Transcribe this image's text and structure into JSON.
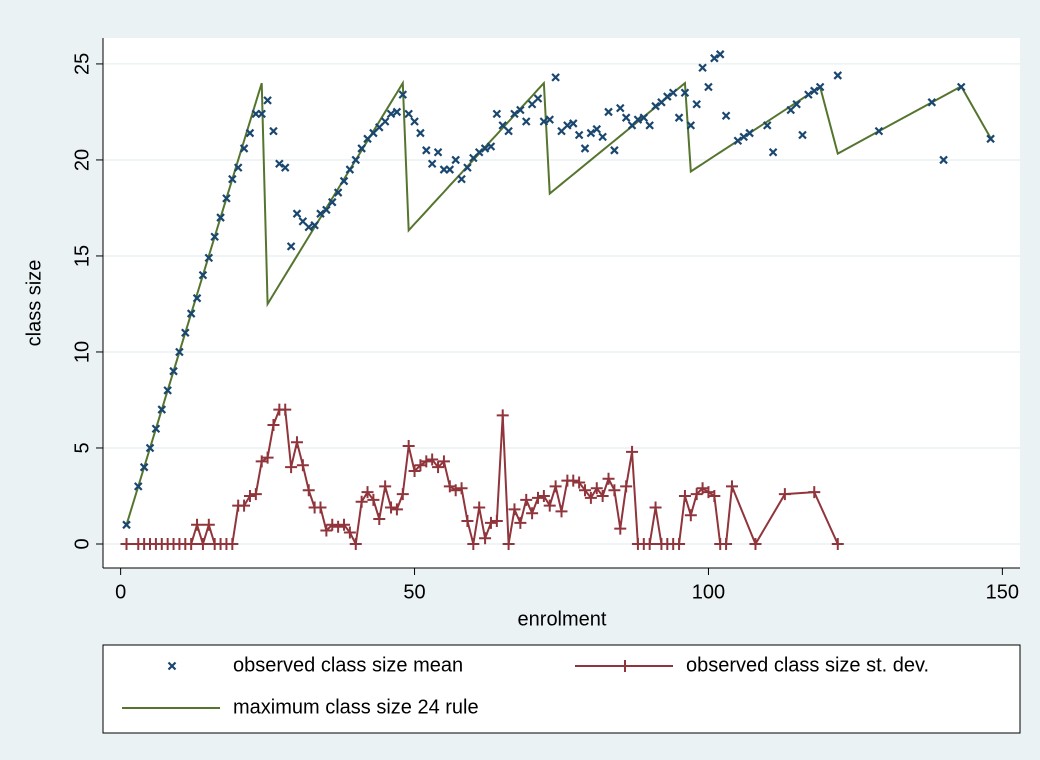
{
  "chart_data": {
    "type": "scatter-line",
    "xlabel": "enrolment",
    "ylabel": "class size",
    "xlim": [
      -3,
      153
    ],
    "ylim": [
      -1.25,
      26.35
    ],
    "xticks": [
      0,
      50,
      100,
      150
    ],
    "yticks": [
      0,
      5,
      10,
      15,
      20,
      25
    ],
    "grid": true,
    "legend": "bottom",
    "series": [
      {
        "name": "observed class size mean",
        "color": "#1a476f",
        "marker": "x",
        "line": false,
        "x": [
          1,
          3,
          4,
          5,
          6,
          7,
          8,
          9,
          10,
          11,
          12,
          13,
          14,
          15,
          16,
          17,
          18,
          19,
          20,
          21,
          22,
          23,
          24,
          25,
          26,
          27,
          28,
          29,
          30,
          31,
          32,
          33,
          34,
          35,
          36,
          37,
          38,
          39,
          40,
          41,
          42,
          43,
          44,
          45,
          46,
          47,
          48,
          49,
          50,
          51,
          52,
          53,
          54,
          55,
          56,
          57,
          58,
          59,
          60,
          61,
          62,
          63,
          64,
          65,
          66,
          67,
          68,
          69,
          70,
          71,
          72,
          73,
          74,
          75,
          76,
          77,
          78,
          79,
          80,
          81,
          82,
          83,
          84,
          85,
          86,
          87,
          88,
          89,
          90,
          91,
          92,
          93,
          94,
          95,
          96,
          97,
          98,
          99,
          100,
          101,
          102,
          103,
          105,
          106,
          107,
          110,
          111,
          114,
          115,
          116,
          117,
          118,
          119,
          122,
          129,
          138,
          140,
          143,
          148
        ],
        "values": [
          1,
          3,
          4,
          5,
          6,
          7,
          8,
          9,
          10,
          11,
          12,
          12.8,
          14,
          14.9,
          16,
          17,
          18,
          19,
          19.6,
          20.6,
          21.4,
          22.4,
          22.4,
          23.1,
          21.5,
          19.8,
          19.6,
          15.5,
          17.2,
          16.8,
          16.5,
          16.6,
          17.2,
          17.4,
          17.8,
          18.3,
          18.9,
          19.5,
          20,
          20.6,
          21.1,
          21.4,
          21.7,
          22,
          22.4,
          22.5,
          23.4,
          22.4,
          22,
          21.4,
          20.5,
          19.8,
          20.4,
          19.5,
          19.5,
          20,
          19,
          19.6,
          20.1,
          20.4,
          20.6,
          20.7,
          22.4,
          21.8,
          21.5,
          22.4,
          22.6,
          22,
          22.9,
          23.2,
          22,
          22.1,
          24.3,
          21.5,
          21.8,
          21.9,
          21.3,
          20.6,
          21.4,
          21.6,
          21.2,
          22.5,
          20.5,
          22.7,
          22.2,
          21.8,
          22.1,
          22.2,
          21.8,
          22.8,
          23,
          23.3,
          23.5,
          22.2,
          23.5,
          21.8,
          22.9,
          24.8,
          23.8,
          25.3,
          25.5,
          22.3,
          21,
          21.2,
          21.4,
          21.8,
          20.4,
          22.6,
          22.9,
          21.3,
          23.4,
          23.6,
          23.8,
          24.4,
          21.5,
          23,
          20,
          23.8,
          21.1
        ]
      },
      {
        "name": "observed class size st. dev.",
        "color": "#90353b",
        "marker": "plus",
        "line": true,
        "x": [
          1,
          3,
          4,
          5,
          6,
          7,
          8,
          9,
          10,
          11,
          12,
          13,
          14,
          15,
          16,
          17,
          18,
          19,
          20,
          21,
          22,
          23,
          24,
          25,
          26,
          27,
          28,
          29,
          30,
          31,
          32,
          33,
          34,
          35,
          36,
          37,
          38,
          39,
          40,
          41,
          42,
          43,
          44,
          45,
          46,
          47,
          48,
          49,
          50,
          51,
          52,
          53,
          54,
          55,
          56,
          57,
          58,
          59,
          60,
          61,
          62,
          63,
          64,
          65,
          66,
          67,
          68,
          69,
          70,
          71,
          72,
          73,
          74,
          75,
          76,
          77,
          78,
          79,
          80,
          81,
          82,
          83,
          84,
          85,
          86,
          87,
          88,
          89,
          90,
          91,
          92,
          93,
          94,
          95,
          96,
          97,
          98,
          99,
          100,
          101,
          102,
          103,
          104,
          108,
          113,
          118,
          122
        ],
        "values": [
          0,
          0,
          0,
          0,
          0,
          0,
          0,
          0,
          0,
          0,
          0,
          1,
          0,
          1,
          0,
          0,
          0,
          0,
          2,
          2,
          2.5,
          2.6,
          4.3,
          4.5,
          6.2,
          7,
          7,
          4,
          5.3,
          4.1,
          2.8,
          1.9,
          1.9,
          0.7,
          1,
          0.9,
          1,
          0.6,
          0,
          2.2,
          2.7,
          2.3,
          1.3,
          3,
          1.9,
          1.8,
          2.6,
          5.1,
          3.8,
          4.1,
          4.3,
          4.4,
          4,
          4.3,
          3,
          2.8,
          2.9,
          1.2,
          0,
          1.9,
          0.3,
          1.1,
          1.2,
          6.7,
          0,
          1.8,
          1.1,
          2.3,
          1.6,
          2.4,
          2.5,
          2,
          3,
          1.7,
          3.3,
          3.3,
          3.2,
          2.8,
          2.4,
          2.9,
          2.5,
          3.4,
          2.8,
          0.8,
          3,
          4.8,
          0,
          0,
          0,
          1.9,
          0,
          0,
          0,
          0,
          2.5,
          1.5,
          2.6,
          2.9,
          2.7,
          2.5,
          0,
          0,
          3,
          0,
          2.6,
          2.7,
          0
        ]
      },
      {
        "name": "maximum class size 24 rule",
        "color": "#55752f",
        "marker": "none",
        "line": true,
        "x": [
          1,
          3,
          4,
          5,
          6,
          7,
          8,
          9,
          10,
          11,
          12,
          13,
          14,
          15,
          16,
          17,
          18,
          19,
          20,
          21,
          22,
          23,
          24,
          25,
          26,
          27,
          28,
          29,
          30,
          31,
          32,
          33,
          34,
          35,
          36,
          37,
          38,
          39,
          40,
          41,
          42,
          43,
          44,
          45,
          46,
          47,
          48,
          49,
          50,
          51,
          52,
          53,
          54,
          55,
          56,
          57,
          58,
          59,
          60,
          61,
          62,
          63,
          64,
          65,
          66,
          67,
          68,
          69,
          70,
          71,
          72,
          73,
          74,
          75,
          76,
          77,
          78,
          79,
          80,
          81,
          82,
          83,
          84,
          85,
          86,
          87,
          88,
          89,
          90,
          91,
          92,
          93,
          94,
          95,
          96,
          97,
          98,
          99,
          100,
          101,
          102,
          103,
          105,
          106,
          107,
          110,
          111,
          114,
          115,
          116,
          117,
          118,
          119,
          122,
          129,
          138,
          140,
          143,
          148
        ],
        "values": [
          1,
          3,
          4,
          5,
          6,
          7,
          8,
          9,
          10,
          11,
          12,
          13,
          14,
          15,
          16,
          17,
          18,
          19,
          20,
          21,
          22,
          23,
          24,
          12.5,
          13,
          13.5,
          14,
          14.5,
          15,
          15.5,
          16,
          16.5,
          17,
          17.5,
          18,
          18.5,
          19,
          19.5,
          20,
          20.5,
          21,
          21.5,
          22,
          22.5,
          23,
          23.5,
          24,
          16.33,
          16.67,
          17,
          17.33,
          17.67,
          18,
          18.33,
          18.67,
          19,
          19.33,
          19.67,
          20,
          20.33,
          20.67,
          21,
          21.33,
          21.67,
          22,
          22.33,
          22.67,
          23,
          23.33,
          23.67,
          24,
          18.25,
          18.5,
          18.75,
          19,
          19.25,
          19.5,
          19.75,
          20,
          20.25,
          20.5,
          20.75,
          21,
          21.25,
          21.5,
          21.75,
          22,
          22.25,
          22.5,
          22.75,
          23,
          23.25,
          23.5,
          23.75,
          24,
          19.4,
          19.6,
          19.8,
          20,
          20.2,
          20.4,
          20.6,
          21,
          21.2,
          21.4,
          22,
          22.2,
          22.8,
          23,
          23.2,
          23.4,
          23.6,
          23.8,
          20.33,
          21.5,
          23,
          23.33,
          23.83,
          21.14
        ]
      }
    ]
  }
}
